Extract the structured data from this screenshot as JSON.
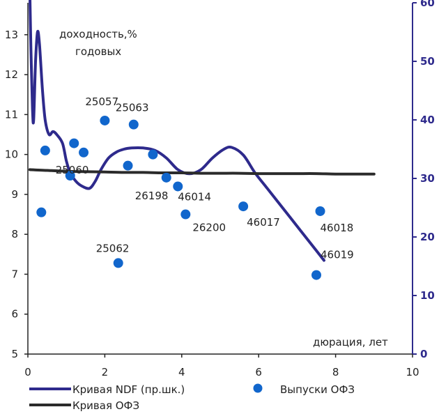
{
  "chart_data": {
    "type": "scatter",
    "ylabel_line1": "доходность,%",
    "ylabel_line2": "годовых",
    "xlabel": "дюрация, лет",
    "xlim": [
      0,
      10
    ],
    "ylim_left": [
      5,
      13.8
    ],
    "ylim_right": [
      0,
      60
    ],
    "x_ticks": [
      "0",
      "2",
      "4",
      "6",
      "8",
      "10"
    ],
    "y_left_ticks": [
      "5",
      "6",
      "7",
      "8",
      "9",
      "10",
      "11",
      "12",
      "13"
    ],
    "y_right_ticks": [
      "0",
      "10",
      "20",
      "30",
      "40",
      "50",
      "60"
    ],
    "colors": {
      "ndf": "#2e2a8c",
      "ofz_curve": "#2b2b2b",
      "points": "#1166cc",
      "right_axis": "#2e2a8c"
    },
    "series": [
      {
        "name": "Кривая NDF (пр.шк.)",
        "axis": "right",
        "x": [
          0.05,
          0.08,
          0.12,
          0.15,
          0.2,
          0.25,
          0.3,
          0.38,
          0.45,
          0.55,
          0.65,
          0.75,
          0.9,
          1.0,
          1.1,
          1.25,
          1.4,
          1.6,
          1.75,
          1.9,
          2.1,
          2.3,
          2.5,
          2.7,
          3.0,
          3.3,
          3.6,
          3.9,
          4.2,
          4.5,
          4.8,
          5.1,
          5.3,
          5.6,
          5.9,
          6.2,
          6.5,
          6.8,
          7.1,
          7.4,
          7.7
        ],
        "values": [
          62,
          52,
          42,
          40,
          50,
          55,
          53,
          45,
          40,
          37.5,
          38,
          37.5,
          36,
          33,
          31,
          29.5,
          28.7,
          28.3,
          29.5,
          31.5,
          33.5,
          34.5,
          35,
          35.2,
          35.2,
          34.8,
          33.5,
          31.5,
          30.8,
          31.5,
          33.5,
          35,
          35.3,
          34,
          31,
          28.5,
          26,
          23.5,
          21,
          18.5,
          16
        ]
      },
      {
        "name": "Кривая ОФЗ",
        "axis": "left",
        "x": [
          0.05,
          0.5,
          1,
          1.5,
          2,
          2.5,
          3,
          3.5,
          4,
          4.5,
          5,
          5.5,
          6,
          6.5,
          7,
          7.5,
          8,
          8.5,
          9
        ],
        "values": [
          9.62,
          9.6,
          9.58,
          9.57,
          9.56,
          9.55,
          9.55,
          9.54,
          9.54,
          9.53,
          9.53,
          9.53,
          9.52,
          9.52,
          9.52,
          9.52,
          9.51,
          9.51,
          9.51
        ]
      },
      {
        "name": "Выпуски ОФЗ",
        "axis": "left",
        "points": [
          {
            "x": 0.35,
            "y": 8.55,
            "label": ""
          },
          {
            "x": 0.45,
            "y": 10.1,
            "label": ""
          },
          {
            "x": 1.1,
            "y": 9.47,
            "label": "25060"
          },
          {
            "x": 1.2,
            "y": 10.28,
            "label": ""
          },
          {
            "x": 1.45,
            "y": 10.05,
            "label": ""
          },
          {
            "x": 2.0,
            "y": 10.85,
            "label": "25057"
          },
          {
            "x": 2.35,
            "y": 7.28,
            "label": "25062"
          },
          {
            "x": 2.6,
            "y": 9.72,
            "label": ""
          },
          {
            "x": 2.75,
            "y": 10.75,
            "label": "25063"
          },
          {
            "x": 3.25,
            "y": 10.0,
            "label": ""
          },
          {
            "x": 3.6,
            "y": 9.42,
            "label": "26198"
          },
          {
            "x": 3.9,
            "y": 9.2,
            "label": "46014"
          },
          {
            "x": 4.1,
            "y": 8.5,
            "label": "26200"
          },
          {
            "x": 5.6,
            "y": 8.7,
            "label": "46017"
          },
          {
            "x": 7.5,
            "y": 6.98,
            "label": "46019"
          },
          {
            "x": 7.6,
            "y": 8.58,
            "label": "46018"
          }
        ]
      }
    ],
    "legend": {
      "ndf": "Кривая NDF (пр.шк.)",
      "ofz_curve": "Кривая ОФЗ",
      "ofz_points": "Выпуски ОФЗ"
    }
  }
}
